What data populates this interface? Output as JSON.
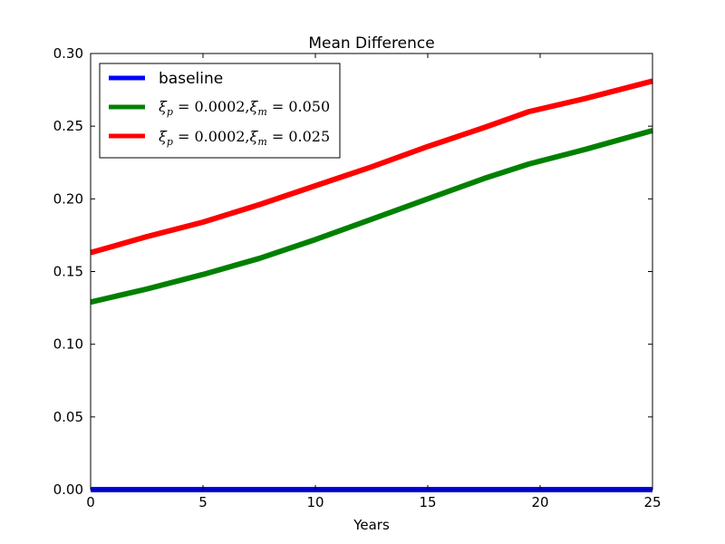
{
  "chart_data": {
    "type": "line",
    "title": "Mean Difference",
    "xlabel": "Years",
    "ylabel": "",
    "xlim": [
      0,
      25
    ],
    "ylim": [
      0.0,
      0.3
    ],
    "xticks": [
      "0",
      "5",
      "10",
      "15",
      "20",
      "25"
    ],
    "yticks": [
      "0.00",
      "0.05",
      "0.10",
      "0.15",
      "0.20",
      "0.25",
      "0.30"
    ],
    "grid": false,
    "legend_position": "upper-left",
    "series": [
      {
        "name": "baseline",
        "color": "#0000ff",
        "x": [
          0,
          5,
          10,
          15,
          20,
          25
        ],
        "y": [
          0.0,
          0.0,
          0.0,
          0.0,
          0.0,
          0.0
        ]
      },
      {
        "name": "ξp = 0.0002, ξm = 0.050",
        "color": "#008000",
        "x": [
          0,
          2.5,
          5,
          7.5,
          10,
          12.5,
          15,
          17.5,
          19.5,
          22,
          25
        ],
        "y": [
          0.129,
          0.138,
          0.148,
          0.159,
          0.172,
          0.186,
          0.2,
          0.214,
          0.224,
          0.234,
          0.247
        ]
      },
      {
        "name": "ξp = 0.0002, ξm = 0.025",
        "color": "#ff0000",
        "x": [
          0,
          2.5,
          5,
          7.5,
          10,
          12.5,
          15,
          17.5,
          19.5,
          22,
          25
        ],
        "y": [
          0.163,
          0.174,
          0.184,
          0.196,
          0.209,
          0.222,
          0.236,
          0.249,
          0.26,
          0.269,
          0.281
        ]
      }
    ],
    "legend_parts": [
      {
        "label": "baseline"
      },
      {
        "xi": "ξ",
        "sub1": "p",
        "eq1": " = 0.0002,",
        "xi2": "ξ",
        "sub2": "m",
        "eq2": " = 0.050"
      },
      {
        "xi": "ξ",
        "sub1": "p",
        "eq1": " = 0.0002,",
        "xi2": "ξ",
        "sub2": "m",
        "eq2": " = 0.025"
      }
    ]
  }
}
